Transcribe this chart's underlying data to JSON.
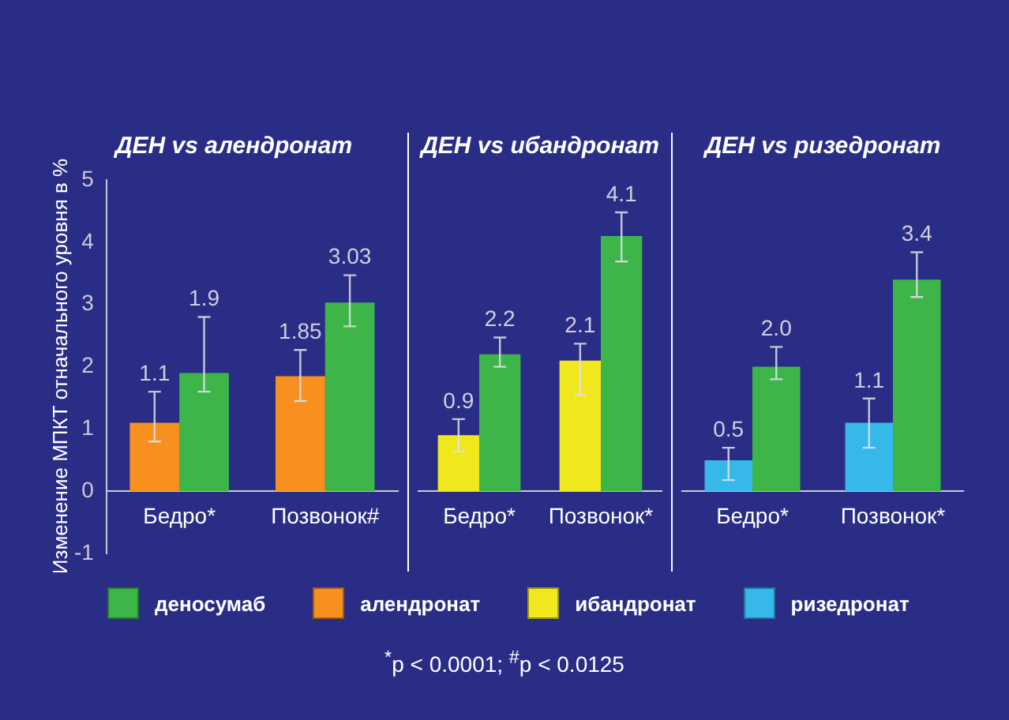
{
  "chart_data": [
    {
      "type": "bar",
      "title": "ДЕН vs алендронат",
      "ylabel": "Изменение МПКТ отначального уровня в %",
      "categories": [
        "Бедро*",
        "Позвонок#"
      ],
      "ylim": [
        -1,
        5
      ],
      "yticks": [
        -1,
        0,
        1,
        2,
        3,
        4,
        5
      ],
      "grid": false,
      "legend": "bottom",
      "series": [
        {
          "name": "алендронат",
          "color": "#f7901e",
          "values": [
            1.1,
            1.85
          ],
          "value_labels": [
            "1.1",
            "1.85"
          ],
          "errors": [
            [
              0.8,
              1.6
            ],
            [
              1.45,
              2.27
            ]
          ]
        },
        {
          "name": "деносумаб",
          "color": "#3db548",
          "values": [
            1.9,
            3.03
          ],
          "value_labels": [
            "1.9",
            "3.03"
          ],
          "errors": [
            [
              1.6,
              2.8
            ],
            [
              2.65,
              3.47
            ]
          ]
        }
      ],
      "annotations": [
        "$^{*}$p < 0.0001;  $^{#}$p < 0.0125"
      ]
    },
    {
      "type": "bar",
      "title": "ДЕН vs ибандронат",
      "categories": [
        "Бедро*",
        "Позвонок*"
      ],
      "ylim": [
        -1,
        5
      ],
      "grid": false,
      "tick_labels": "x",
      "series": [
        {
          "name": "ибандронат",
          "color": "#f0e81c",
          "values": [
            0.9,
            2.1
          ],
          "value_labels": [
            "0.9",
            "2.1"
          ],
          "errors": [
            [
              0.64,
              1.16
            ],
            [
              1.55,
              2.37
            ]
          ]
        },
        {
          "color": "#3db548",
          "values": [
            2.2,
            4.1
          ],
          "value_labels": [
            "2.2",
            "4.1"
          ],
          "errors": [
            [
              2.0,
              2.47
            ],
            [
              3.69,
              4.48
            ]
          ]
        }
      ]
    },
    {
      "type": "bar",
      "title": "ДЕН vs ризедронат",
      "categories": [
        "Бедро*",
        "Позвонок*"
      ],
      "ylim": [
        -1,
        5
      ],
      "grid": false,
      "tick_labels": "x",
      "series": [
        {
          "name": "ризедронат",
          "color": "#36b8e8",
          "values": [
            0.5,
            1.1
          ],
          "value_labels": [
            "0.5",
            "1.1"
          ],
          "errors": [
            [
              0.18,
              0.7
            ],
            [
              0.7,
              1.49
            ]
          ]
        },
        {
          "color": "#3db548",
          "values": [
            2.0,
            3.4
          ],
          "value_labels": [
            "2.0",
            "3.4"
          ],
          "errors": [
            [
              1.8,
              2.32
            ],
            [
              3.12,
              3.84
            ]
          ]
        }
      ]
    }
  ]
}
